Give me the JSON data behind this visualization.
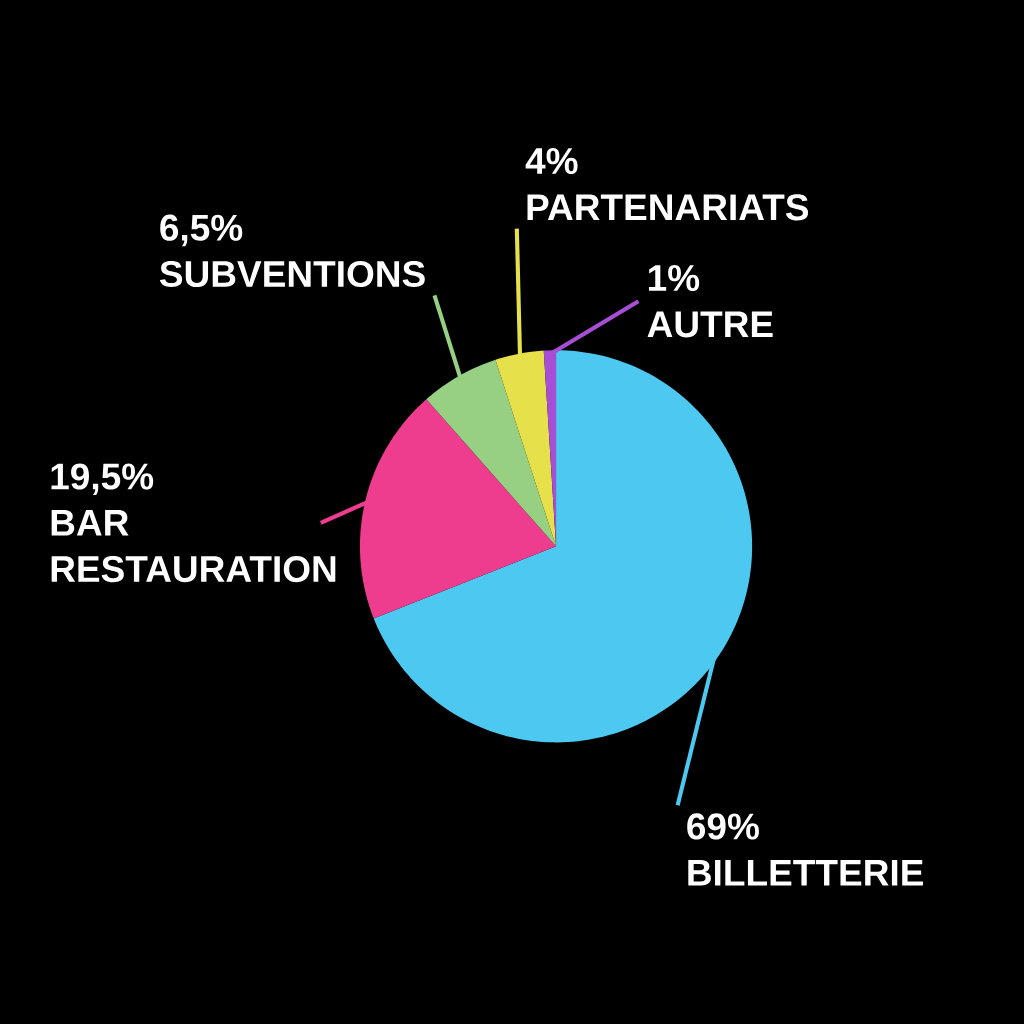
{
  "chart_data": {
    "type": "pie",
    "categories": [
      "BILLETTERIE",
      "BAR RESTAURATION",
      "SUBVENTIONS",
      "PARTENARIATS",
      "AUTRE"
    ],
    "values": [
      69,
      19.5,
      6.5,
      4,
      1
    ],
    "value_labels": [
      "69%",
      "19,5%",
      "6,5%",
      "4%",
      "1%"
    ],
    "colors": [
      "#4dc8f0",
      "#ee3d8f",
      "#98d083",
      "#e6e14a",
      "#a64fd6"
    ]
  }
}
